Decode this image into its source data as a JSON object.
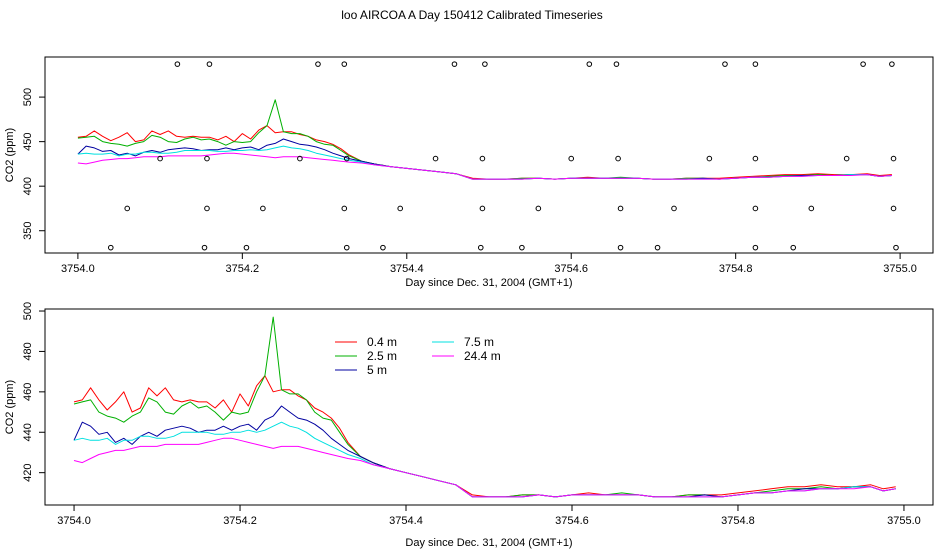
{
  "figure": {
    "title": "loo AIRCOA A  Day 150412  Calibrated Timeseries"
  },
  "chart_data": [
    {
      "type": "line",
      "panel": "top",
      "title": "",
      "xlabel": "Day since Dec. 31, 2004 (GMT+1)",
      "ylabel": "CO2 (ppm)",
      "xlim": [
        3753.96,
        3755.04
      ],
      "ylim": [
        325,
        545
      ],
      "x_ticks": [
        "3754.0",
        "3754.2",
        "3754.4",
        "3754.6",
        "3754.8",
        "3755.0"
      ],
      "x_tick_values": [
        3754.0,
        3754.2,
        3754.4,
        3754.6,
        3754.8,
        3755.0
      ],
      "y_ticks": [
        "350",
        "400",
        "450",
        "500"
      ],
      "y_tick_values": [
        350,
        400,
        450,
        500
      ],
      "grid": false,
      "legend": "none",
      "x": [
        3754.0,
        3754.01,
        3754.02,
        3754.03,
        3754.04,
        3754.05,
        3754.06,
        3754.07,
        3754.08,
        3754.09,
        3754.1,
        3754.11,
        3754.12,
        3754.13,
        3754.14,
        3754.15,
        3754.16,
        3754.17,
        3754.18,
        3754.19,
        3754.2,
        3754.21,
        3754.22,
        3754.23,
        3754.24,
        3754.25,
        3754.26,
        3754.27,
        3754.28,
        3754.29,
        3754.3,
        3754.31,
        3754.32,
        3754.33,
        3754.345,
        3754.36,
        3754.38,
        3754.4,
        3754.42,
        3754.44,
        3754.46,
        3754.48,
        3754.5,
        3754.52,
        3754.54,
        3754.56,
        3754.58,
        3754.6,
        3754.62,
        3754.64,
        3754.66,
        3754.68,
        3754.7,
        3754.72,
        3754.74,
        3754.76,
        3754.78,
        3754.8,
        3754.82,
        3754.84,
        3754.86,
        3754.88,
        3754.9,
        3754.92,
        3754.94,
        3754.96,
        3754.975,
        3754.99
      ],
      "series": [
        {
          "name": "0.4 m",
          "color": "#ff0000",
          "values": [
            455,
            456,
            462,
            456,
            451,
            455,
            460,
            450,
            452,
            462,
            458,
            462,
            456,
            455,
            456,
            455,
            455,
            452,
            456,
            450,
            459,
            453,
            463,
            468,
            460,
            461,
            461,
            458,
            456,
            452,
            450,
            447,
            442,
            435,
            428,
            425,
            422,
            420,
            418,
            416,
            414,
            409,
            408,
            408,
            409,
            409,
            408,
            409,
            410,
            409,
            409,
            409,
            408,
            408,
            409,
            409,
            409,
            410,
            411,
            412,
            413,
            413,
            414,
            413,
            413,
            414,
            412,
            413
          ]
        },
        {
          "name": "2.5 m",
          "color": "#00b000",
          "values": [
            454,
            455,
            456,
            450,
            448,
            447,
            445,
            448,
            450,
            457,
            455,
            450,
            449,
            453,
            455,
            452,
            453,
            450,
            446,
            450,
            449,
            450,
            460,
            468,
            497,
            461,
            459,
            459,
            456,
            450,
            447,
            446,
            440,
            434,
            428,
            425,
            422,
            420,
            418,
            416,
            414,
            408,
            408,
            408,
            409,
            409,
            408,
            409,
            409,
            409,
            410,
            409,
            408,
            408,
            409,
            409,
            408,
            409,
            410,
            411,
            412,
            412,
            413,
            412,
            413,
            413,
            411,
            412
          ]
        },
        {
          "name": "5 m",
          "color": "#0000a0",
          "values": [
            436,
            445,
            443,
            439,
            440,
            435,
            437,
            434,
            438,
            440,
            438,
            441,
            442,
            443,
            442,
            440,
            441,
            441,
            443,
            441,
            443,
            444,
            441,
            446,
            448,
            453,
            450,
            447,
            446,
            444,
            441,
            437,
            434,
            431,
            428,
            425,
            422,
            420,
            418,
            416,
            414,
            408,
            408,
            408,
            408,
            409,
            408,
            409,
            409,
            409,
            409,
            409,
            408,
            408,
            408,
            409,
            408,
            409,
            410,
            410,
            411,
            412,
            412,
            412,
            413,
            413,
            411,
            412
          ]
        },
        {
          "name": "7.5 m",
          "color": "#00e0e0",
          "values": [
            436,
            437,
            436,
            436,
            437,
            434,
            436,
            436,
            438,
            438,
            437,
            437,
            438,
            440,
            440,
            440,
            440,
            439,
            439,
            440,
            440,
            441,
            440,
            441,
            443,
            445,
            443,
            442,
            440,
            437,
            435,
            433,
            431,
            429,
            427,
            424,
            422,
            420,
            418,
            416,
            414,
            408,
            408,
            408,
            408,
            409,
            408,
            409,
            409,
            409,
            409,
            409,
            408,
            408,
            408,
            408,
            408,
            409,
            410,
            410,
            411,
            411,
            412,
            412,
            413,
            413,
            411,
            412
          ]
        },
        {
          "name": "24.4 m",
          "color": "#ff00ff",
          "values": [
            426,
            425,
            427,
            429,
            430,
            431,
            431,
            432,
            433,
            433,
            433,
            434,
            434,
            434,
            434,
            434,
            435,
            436,
            437,
            437,
            436,
            435,
            434,
            433,
            432,
            433,
            433,
            433,
            432,
            431,
            430,
            429,
            428,
            427,
            426,
            424,
            422,
            420,
            418,
            416,
            414,
            408,
            408,
            408,
            408,
            409,
            408,
            409,
            409,
            409,
            409,
            409,
            408,
            408,
            408,
            408,
            408,
            409,
            410,
            410,
            411,
            411,
            412,
            412,
            412,
            413,
            411,
            412
          ]
        }
      ],
      "markers": {
        "shape": "open circle",
        "row_values": [
          537,
          431,
          375,
          331
        ],
        "x_by_row": [
          [
            3754.121,
            3754.16,
            3754.292,
            3754.324,
            3754.458,
            3754.495,
            3754.622,
            3754.655,
            3754.787,
            3754.824,
            3754.955,
            3754.99
          ],
          [
            3754.1,
            3754.157,
            3754.27,
            3754.327,
            3754.435,
            3754.492,
            3754.6,
            3754.657,
            3754.768,
            3754.824,
            3754.935,
            3754.992
          ],
          [
            3754.06,
            3754.157,
            3754.225,
            3754.324,
            3754.392,
            3754.492,
            3754.56,
            3754.66,
            3754.725,
            3754.824,
            3754.892,
            3754.992
          ],
          [
            3754.04,
            3754.154,
            3754.205,
            3754.327,
            3754.371,
            3754.49,
            3754.54,
            3754.66,
            3754.705,
            3754.824,
            3754.87,
            3754.995
          ]
        ]
      }
    },
    {
      "type": "line",
      "panel": "bottom",
      "title": "",
      "xlabel": "Day since Dec. 31, 2004 (GMT+1)",
      "ylabel": "CO2 (ppm)",
      "xlim": [
        3753.965,
        3755.035
      ],
      "ylim": [
        404,
        501
      ],
      "x_ticks": [
        "3754.0",
        "3754.2",
        "3754.4",
        "3754.6",
        "3754.8",
        "3755.0"
      ],
      "x_tick_values": [
        3754.0,
        3754.2,
        3754.4,
        3754.6,
        3754.8,
        3755.0
      ],
      "y_ticks": [
        "420",
        "440",
        "460",
        "480",
        "500"
      ],
      "y_tick_values": [
        420,
        440,
        460,
        480,
        500
      ],
      "grid": false,
      "legend": "top-left",
      "legend_entries": [
        "0.4 m",
        "2.5 m",
        "5 m",
        "7.5 m",
        "24.4 m"
      ],
      "uses_series_of_top_panel": true
    }
  ]
}
